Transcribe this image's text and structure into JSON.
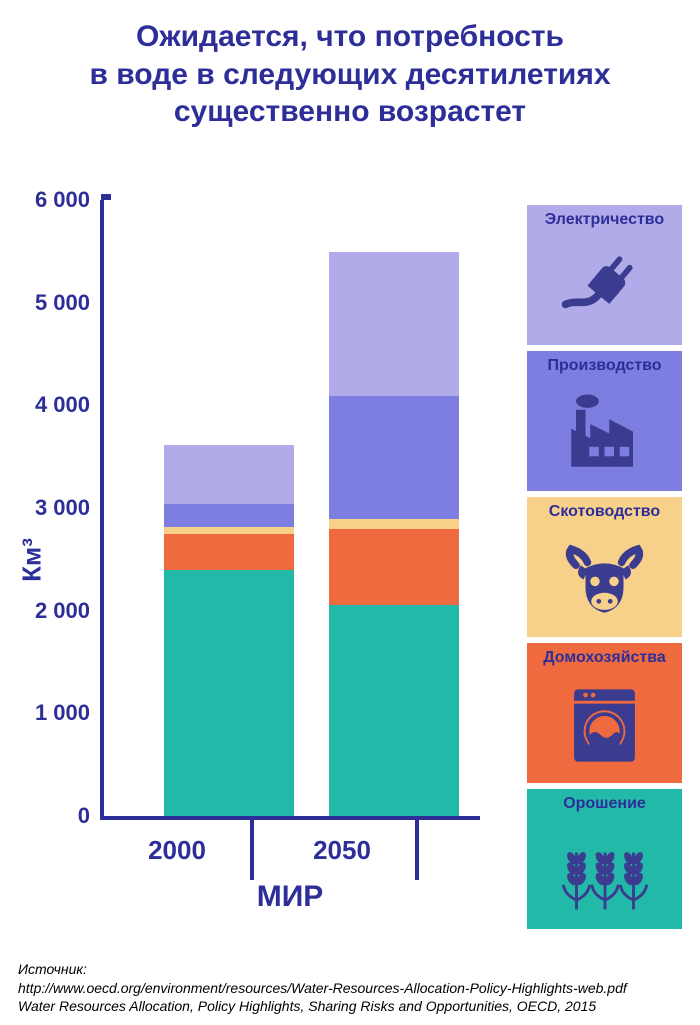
{
  "title_l1": "Ожидается, что потребность",
  "title_l2": "в воде в следующих десятилетиях",
  "title_l3": "существенно возрастет",
  "chart": {
    "type": "stacked-bar",
    "y_label": "Км³",
    "y_max": 6000,
    "ticks": [
      {
        "v": 0,
        "label": "0"
      },
      {
        "v": 1000,
        "label": "1 000"
      },
      {
        "v": 2000,
        "label": "2 000"
      },
      {
        "v": 3000,
        "label": "3 000"
      },
      {
        "v": 4000,
        "label": "4 000"
      },
      {
        "v": 5000,
        "label": "5 000"
      },
      {
        "v": 6000,
        "label": "6 000"
      }
    ],
    "colors": {
      "irrigation": "#23b9a9",
      "domestic": "#f06a3f",
      "livestock": "#f7d08a",
      "manufacturing": "#7d7ee0",
      "electricity": "#b1abea"
    },
    "categories": [
      {
        "label": "2000",
        "stack": [
          {
            "key": "irrigation",
            "value": 2400
          },
          {
            "key": "domestic",
            "value": 350
          },
          {
            "key": "livestock",
            "value": 70
          },
          {
            "key": "manufacturing",
            "value": 220
          },
          {
            "key": "electricity",
            "value": 570
          }
        ]
      },
      {
        "label": "2050",
        "stack": [
          {
            "key": "irrigation",
            "value": 2060
          },
          {
            "key": "domestic",
            "value": 740
          },
          {
            "key": "livestock",
            "value": 90
          },
          {
            "key": "manufacturing",
            "value": 1200
          },
          {
            "key": "electricity",
            "value": 1400
          }
        ]
      }
    ],
    "group_label": "МИР"
  },
  "legend": [
    {
      "id": "electricity",
      "label": "Электричество",
      "bg": "#b1abea",
      "icon_color": "#3b3b8f"
    },
    {
      "id": "manufacturing",
      "label": "Производство",
      "bg": "#7d7ee0",
      "icon_color": "#3b3b8f"
    },
    {
      "id": "livestock",
      "label": "Скотоводство",
      "bg": "#f7d08a",
      "icon_color": "#3b3b8f"
    },
    {
      "id": "domestic",
      "label": "Домохозяйства",
      "bg": "#f06a3f",
      "icon_color": "#3b3b8f"
    },
    {
      "id": "irrigation",
      "label": "Орошение",
      "bg": "#23b9a9",
      "icon_color": "#3b3b8f"
    }
  ],
  "footer_label": "Источник:",
  "footer_text": "http://www.oecd.org/environment/resources/Water-Resources-Allocation-Policy-Highlights-web.pdf Water Resources Allocation, Policy Highlights, Sharing Risks and Opportunities, OECD, 2015"
}
